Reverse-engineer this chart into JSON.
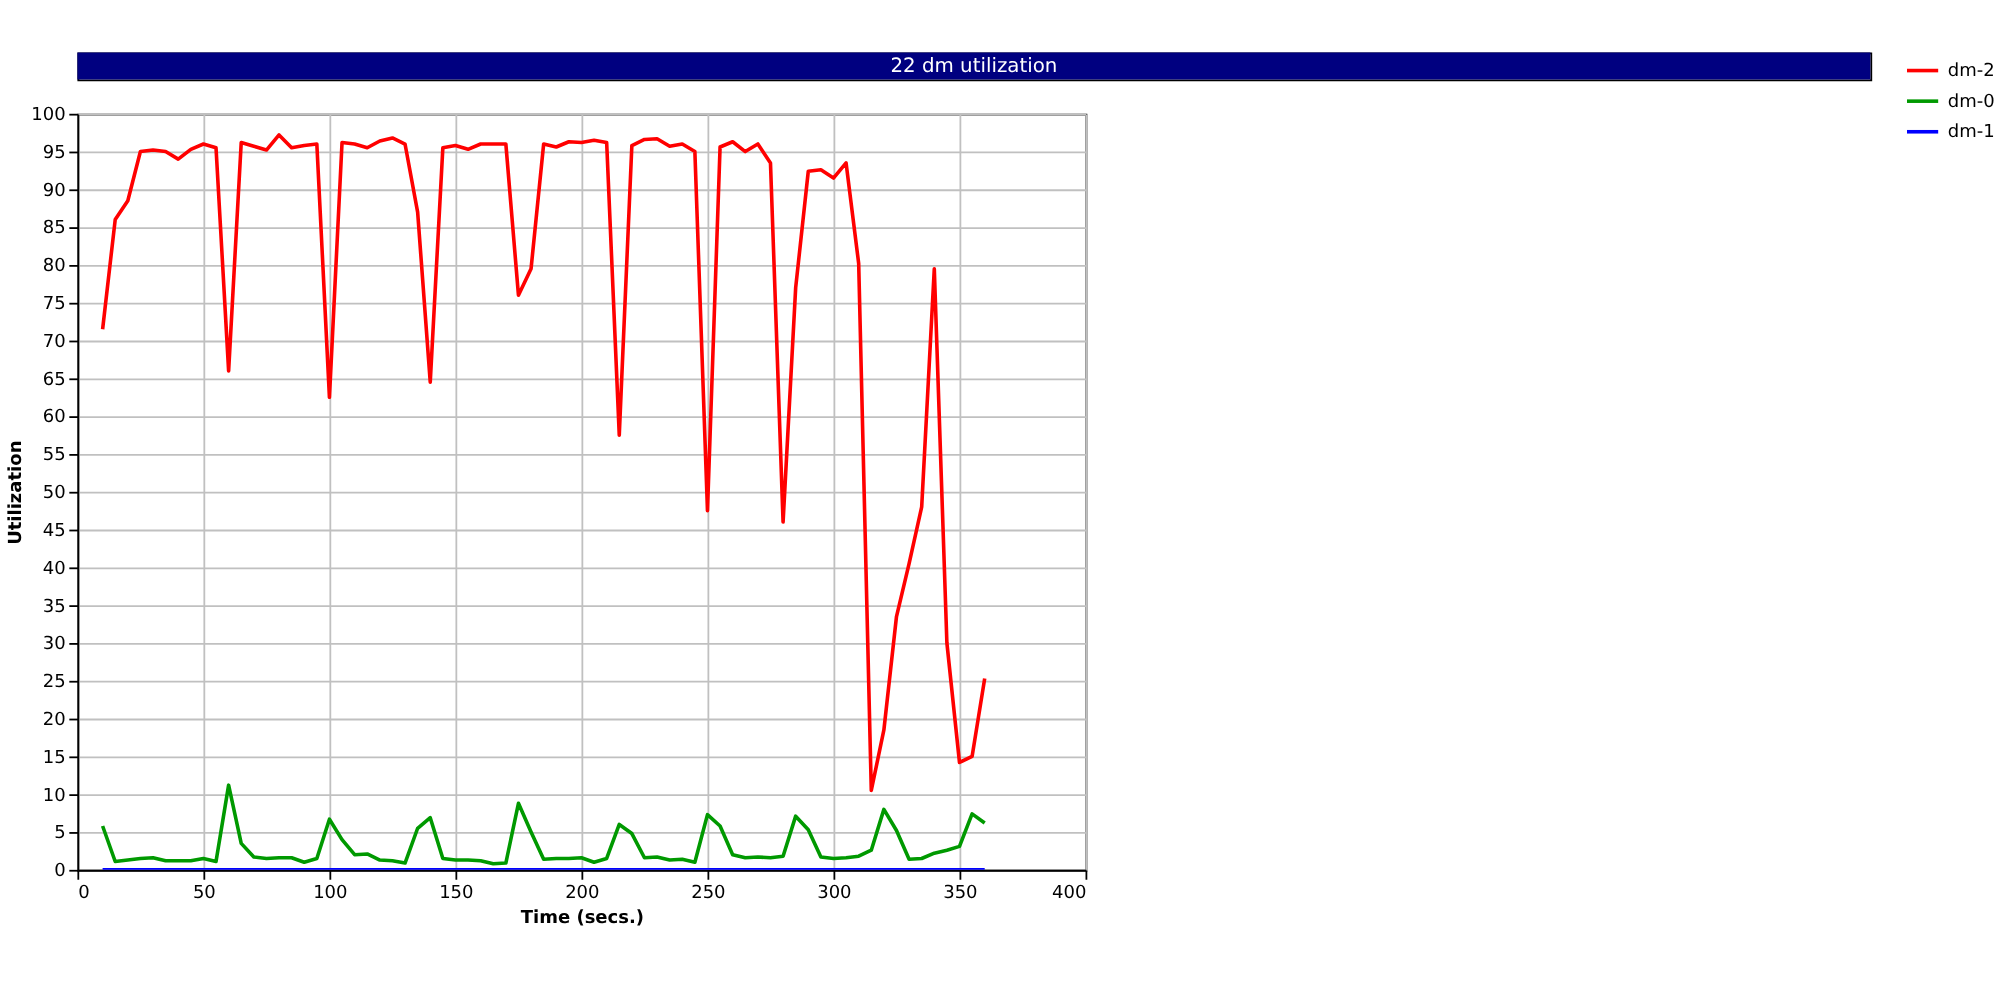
{
  "chart_data": {
    "type": "line",
    "title": "22 dm utilization",
    "xlabel": "Time (secs.)",
    "ylabel": "Utilization",
    "x": [
      10,
      15,
      20,
      25,
      30,
      35,
      40,
      45,
      50,
      55,
      60,
      65,
      70,
      75,
      80,
      85,
      90,
      95,
      100,
      105,
      110,
      115,
      120,
      125,
      130,
      135,
      140,
      145,
      150,
      155,
      160,
      165,
      170,
      175,
      180,
      185,
      190,
      195,
      200,
      205,
      210,
      215,
      220,
      225,
      230,
      235,
      240,
      245,
      250,
      255,
      260,
      265,
      270,
      275,
      280,
      285,
      290,
      295,
      300,
      305,
      310,
      315,
      320,
      325,
      330,
      335,
      340,
      345,
      350,
      355,
      360
    ],
    "xlim": [
      0,
      400
    ],
    "xticks": [
      0,
      50,
      100,
      150,
      200,
      250,
      300,
      350,
      400
    ],
    "ylim": [
      0,
      100
    ],
    "yticks": [
      0,
      5,
      10,
      15,
      20,
      25,
      30,
      35,
      40,
      45,
      50,
      55,
      60,
      65,
      70,
      75,
      80,
      85,
      90,
      95,
      100
    ],
    "grid": true,
    "legend": "top right",
    "marker": "none",
    "line_style": "solid",
    "series": [
      {
        "name": "dm-2",
        "color": "#ff0000",
        "values": [
          71.5,
          86,
          88.5,
          95,
          95.2,
          95,
          94,
          95.3,
          96,
          95.5,
          66,
          96.2,
          95.7,
          95.2,
          97.2,
          95.5,
          95.8,
          96,
          62.5,
          96.2,
          96,
          95.5,
          96.4,
          96.8,
          96,
          87,
          64.5,
          95.5,
          95.8,
          95.3,
          96,
          96,
          96,
          76,
          79.5,
          96,
          95.6,
          96.3,
          96.2,
          96.5,
          96.2,
          57.5,
          95.8,
          96.6,
          96.7,
          95.7,
          96,
          95,
          47.5,
          95.6,
          96.3,
          95,
          96,
          93.5,
          46,
          77,
          92.4,
          92.6,
          91.5,
          93.5,
          80.2,
          10.5,
          18.5,
          33.5,
          40.5,
          48,
          79.5,
          30,
          14.2,
          15,
          25.3
        ]
      },
      {
        "name": "dm-0",
        "color": "#009900",
        "values": [
          5.8,
          1.1,
          1.3,
          1.5,
          1.6,
          1.2,
          1.2,
          1.2,
          1.5,
          1.1,
          11.2,
          3.5,
          1.7,
          1.5,
          1.6,
          1.6,
          1.0,
          1.5,
          6.7,
          4,
          2,
          2.1,
          1.3,
          1.2,
          0.9,
          5.5,
          6.9,
          1.5,
          1.3,
          1.3,
          1.2,
          0.8,
          0.9,
          8.8,
          5,
          1.4,
          1.5,
          1.5,
          1.6,
          1.0,
          1.5,
          6,
          4.8,
          1.6,
          1.7,
          1.3,
          1.4,
          1.0,
          7.3,
          5.8,
          2.0,
          1.6,
          1.7,
          1.6,
          1.8,
          7.1,
          5.3,
          1.7,
          1.5,
          1.6,
          1.8,
          2.6,
          8,
          5.2,
          1.4,
          1.5,
          2.2,
          2.6,
          3.1,
          7.4,
          6.2
        ]
      },
      {
        "name": "dm-1",
        "color": "#0000ff",
        "values": [
          0,
          0,
          0,
          0,
          0,
          0,
          0,
          0,
          0,
          0,
          0,
          0,
          0,
          0,
          0,
          0,
          0,
          0,
          0,
          0,
          0,
          0,
          0,
          0,
          0,
          0,
          0,
          0,
          0,
          0,
          0,
          0,
          0,
          0,
          0,
          0,
          0,
          0,
          0,
          0,
          0,
          0,
          0,
          0,
          0,
          0,
          0,
          0,
          0,
          0,
          0,
          0,
          0,
          0,
          0,
          0,
          0,
          0,
          0,
          0,
          0,
          0,
          0,
          0,
          0,
          0,
          0,
          0,
          0,
          0,
          0
        ]
      }
    ]
  }
}
